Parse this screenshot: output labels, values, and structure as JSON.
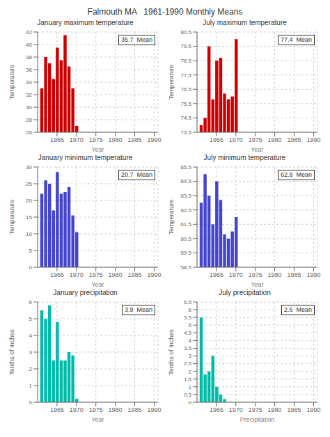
{
  "title": "Falmouth MA   1961-1990 Monthly Means",
  "chart_data": [
    {
      "type": "bar",
      "title": "January maximum temperature",
      "annotations": [
        "35.7  Mean"
      ],
      "ylabel": "Temperature",
      "xlabel": "Year",
      "color": "#cc0000",
      "x": [
        1961,
        1962,
        1963,
        1964,
        1965,
        1966,
        1967,
        1968,
        1969,
        1970
      ],
      "values": [
        33.0,
        38.0,
        37.0,
        34.5,
        39.5,
        37.5,
        41.5,
        36.5,
        33.0,
        27.0
      ],
      "xlim": [
        1960,
        1991
      ],
      "xticks": [
        1965,
        1970,
        1975,
        1980,
        1985,
        1990
      ],
      "ylim": [
        26,
        42
      ],
      "yticks": [
        26,
        28,
        30,
        32,
        34,
        36,
        38,
        40,
        42
      ],
      "grid": true
    },
    {
      "type": "bar",
      "title": "July maximum temperature",
      "annotations": [
        "77.4  Mean"
      ],
      "ylabel": "Temperature",
      "xlabel": "Year",
      "color": "#cc0000",
      "x": [
        1961,
        1962,
        1963,
        1964,
        1965,
        1966,
        1967,
        1968,
        1969,
        1970
      ],
      "values": [
        74.0,
        74.5,
        79.5,
        75.8,
        78.5,
        78.7,
        76.2,
        75.8,
        76.0,
        80.0
      ],
      "xlim": [
        1960,
        1991
      ],
      "xticks": [
        1965,
        1970,
        1975,
        1980,
        1985,
        1990
      ],
      "ylim": [
        73.5,
        80.5
      ],
      "yticks": [
        73.5,
        74.5,
        75.5,
        76.5,
        77.5,
        78.5,
        79.5,
        80.5
      ],
      "grid": true
    },
    {
      "type": "bar",
      "title": "January minimum temperature",
      "annotations": [
        "20.7  Mean"
      ],
      "ylabel": "Temperature",
      "xlabel": "Year",
      "color": "#4444cc",
      "x": [
        1961,
        1962,
        1963,
        1964,
        1965,
        1966,
        1967,
        1968,
        1969,
        1970
      ],
      "values": [
        22.0,
        26.0,
        25.0,
        17.0,
        28.5,
        22.0,
        22.5,
        24.0,
        15.5,
        10.5
      ],
      "xlim": [
        1960,
        1991
      ],
      "xticks": [
        1965,
        1970,
        1975,
        1980,
        1985,
        1990
      ],
      "ylim": [
        0,
        30
      ],
      "yticks": [
        0,
        5,
        10,
        15,
        20,
        25,
        30
      ],
      "grid": true
    },
    {
      "type": "bar",
      "title": "July minimum temperature",
      "annotations": [
        "62.8  Mean"
      ],
      "ylabel": "Temperature",
      "xlabel": "Year",
      "color": "#4444cc",
      "x": [
        1961,
        1962,
        1963,
        1964,
        1965,
        1966,
        1967,
        1968,
        1969,
        1970
      ],
      "values": [
        63.0,
        65.0,
        63.5,
        61.5,
        64.5,
        63.2,
        60.8,
        60.5,
        61.0,
        62.0
      ],
      "xlim": [
        1960,
        1991
      ],
      "xticks": [
        1965,
        1970,
        1975,
        1980,
        1985,
        1990
      ],
      "ylim": [
        58.5,
        65.5
      ],
      "yticks": [
        58.5,
        59.5,
        60.5,
        61.5,
        62.5,
        63.5,
        64.5,
        65.5
      ],
      "grid": true
    },
    {
      "type": "bar",
      "title": "January precipitation",
      "annotations": [
        "3.9  Mean"
      ],
      "ylabel": "Tenths of Inches",
      "xlabel": "Year",
      "color": "#00bbaa",
      "x": [
        1961,
        1962,
        1963,
        1964,
        1965,
        1966,
        1967,
        1968,
        1969,
        1970
      ],
      "values": [
        5.5,
        5.0,
        5.8,
        2.5,
        4.8,
        2.5,
        2.5,
        3.0,
        2.8,
        0.2
      ],
      "xlim": [
        1960,
        1991
      ],
      "xticks": [
        1965,
        1970,
        1975,
        1980,
        1985,
        1990
      ],
      "ylim": [
        0,
        6
      ],
      "yticks": [
        0,
        1,
        2,
        3,
        4,
        5,
        6
      ],
      "grid": true
    },
    {
      "type": "bar",
      "title": "July precipitation",
      "annotations": [
        "2.6  Mean"
      ],
      "ylabel": "Tenths of Inches",
      "xlabel": "Precipitation",
      "color": "#00bbaa",
      "x": [
        1961,
        1962,
        1963,
        1964,
        1965,
        1966,
        1967,
        1968,
        1969,
        1970
      ],
      "values": [
        5.5,
        1.8,
        2.0,
        3.0,
        1.0,
        0.5,
        0.2,
        0.0,
        0.0,
        0.0
      ],
      "xlim": [
        1960,
        1991
      ],
      "xticks": [
        1965,
        1970,
        1975,
        1980,
        1985,
        1990
      ],
      "ylim": [
        0,
        6.5
      ],
      "yticks": [
        0,
        0.5,
        1.0,
        1.5,
        2.0,
        2.5,
        3.0,
        3.5,
        4.0,
        4.5,
        5.0,
        5.5,
        6.0,
        6.5
      ],
      "grid": true
    }
  ]
}
